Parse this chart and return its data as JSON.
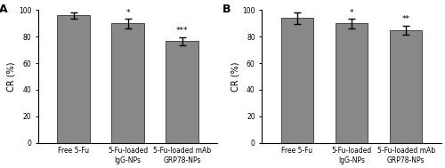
{
  "panel_A": {
    "label": "A",
    "categories": [
      "Free 5-Fu",
      "5-Fu-loaded\nIgG-NPs",
      "5-Fu-loaded mAb\nGRP78-NPs"
    ],
    "values": [
      96.0,
      90.0,
      76.5
    ],
    "errors": [
      2.5,
      3.5,
      3.2
    ],
    "significance": [
      "",
      "*",
      "***"
    ],
    "ylabel": "CR (%)",
    "ylim": [
      0,
      100
    ],
    "yticks": [
      0,
      20,
      40,
      60,
      80,
      100
    ]
  },
  "panel_B": {
    "label": "B",
    "categories": [
      "Free 5-Fu",
      "5-Fu-loaded\nIgG-NPs",
      "5-Fu-loaded mAb\nGRP78-NPs"
    ],
    "values": [
      94.0,
      90.0,
      85.0
    ],
    "errors": [
      4.5,
      3.5,
      3.5
    ],
    "significance": [
      "",
      "*",
      "**"
    ],
    "ylabel": "CR (%)",
    "ylim": [
      0,
      100
    ],
    "yticks": [
      0,
      20,
      40,
      60,
      80,
      100
    ]
  },
  "bar_color": "#888888",
  "bar_edgecolor": "#333333",
  "bar_width": 0.6,
  "figsize": [
    5.0,
    1.89
  ],
  "dpi": 100,
  "tick_fontsize": 5.5,
  "ylabel_fontsize": 7.0,
  "sig_fontsize": 6.5,
  "panel_label_fontsize": 9
}
